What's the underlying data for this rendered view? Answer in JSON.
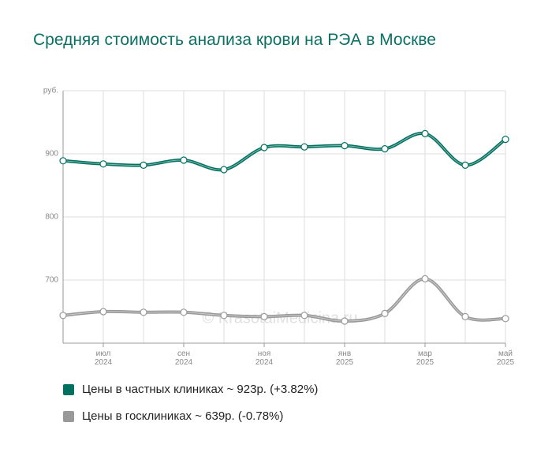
{
  "chart_data": {
    "type": "line",
    "title": "Средняя стоимость анализа крови на РЭА в Москве",
    "watermark": "© KrasotaiMedicina.ru",
    "categories": [
      null,
      "июл 2024",
      null,
      "сен 2024",
      null,
      "ноя 2024",
      null,
      "янв 2025",
      null,
      "мар 2025",
      null,
      "май 2025"
    ],
    "series": [
      {
        "name": "Цены в частных клиниках ~ 923р. (+3.82%)",
        "color": "#00705f",
        "values": [
          889,
          884,
          882,
          890,
          875,
          910,
          911,
          913,
          908,
          932,
          882,
          923
        ]
      },
      {
        "name": "Цены в госклиниках ~ 639р. (-0.78%)",
        "color": "#999999",
        "values": [
          644,
          650,
          649,
          649,
          644,
          642,
          644,
          635,
          647,
          702,
          642,
          639
        ]
      }
    ],
    "ylim": [
      600,
      1000
    ],
    "yticks": [
      700,
      800,
      900,
      {
        "value": 1000,
        "label": "руб."
      }
    ],
    "grid": true
  }
}
